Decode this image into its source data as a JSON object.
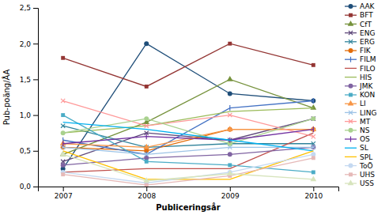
{
  "chart_data": {
    "type": "line",
    "xlabel": "Publiceringsår",
    "ylabel": "Pub-poäng/ÅA",
    "x": [
      2007,
      2008,
      2009,
      2010
    ],
    "xlim": [
      2006.7,
      2010.3
    ],
    "xticks": [
      2007,
      2008,
      2009,
      2010
    ],
    "ylim": [
      0.0,
      2.5
    ],
    "yticks": [
      {
        "value": 0.0,
        "label": "0,0"
      },
      {
        "value": 0.5,
        "label": "0,5"
      },
      {
        "value": 1.0,
        "label": "1,0"
      },
      {
        "value": 1.5,
        "label": "1,5"
      },
      {
        "value": 2.0,
        "label": "2,0"
      },
      {
        "value": 2.5,
        "label": "2,5"
      }
    ],
    "grid": false,
    "legend": "right",
    "series": [
      {
        "name": "AAK",
        "color": "#1F4E79",
        "marker": "circle",
        "line_style": "solid",
        "values": [
          0.25,
          2.0,
          1.3,
          1.2
        ]
      },
      {
        "name": "BFT",
        "color": "#943634",
        "marker": "square",
        "line_style": "solid",
        "values": [
          1.8,
          1.4,
          2.0,
          1.7
        ]
      },
      {
        "name": "CfT",
        "color": "#76923C",
        "marker": "triangle",
        "line_style": "solid",
        "values": [
          0.45,
          0.9,
          1.5,
          1.1
        ]
      },
      {
        "name": "ENG",
        "color": "#5F497A",
        "marker": "x",
        "line_style": "solid",
        "values": [
          0.35,
          0.75,
          0.65,
          0.95
        ]
      },
      {
        "name": "ERG",
        "color": "#31849B",
        "marker": "x",
        "line_style": "solid",
        "values": [
          0.85,
          0.55,
          0.6,
          0.6
        ]
      },
      {
        "name": "FIK",
        "color": "#E36C09",
        "marker": "circle",
        "line_style": "solid",
        "values": [
          0.55,
          0.5,
          0.8,
          0.8
        ]
      },
      {
        "name": "FILM",
        "color": "#4472C4",
        "marker": "vline",
        "line_style": "solid",
        "values": [
          0.65,
          0.45,
          1.1,
          1.2
        ]
      },
      {
        "name": "FILO",
        "color": "#C0504D",
        "marker": "none",
        "line_style": "solid",
        "values": [
          0.2,
          0.25,
          0.25,
          0.75
        ]
      },
      {
        "name": "HIS",
        "color": "#9BBB59",
        "marker": "none",
        "line_style": "solid",
        "values": [
          0.75,
          0.85,
          1.05,
          1.1
        ]
      },
      {
        "name": "JMK",
        "color": "#8064A2",
        "marker": "circle",
        "line_style": "solid",
        "values": [
          0.3,
          0.4,
          0.45,
          0.55
        ]
      },
      {
        "name": "KON",
        "color": "#4BACC6",
        "marker": "square",
        "line_style": "solid",
        "values": [
          1.0,
          0.35,
          0.3,
          0.2
        ]
      },
      {
        "name": "LI",
        "color": "#F79646",
        "marker": "triangle",
        "line_style": "solid",
        "values": [
          0.6,
          0.55,
          0.8,
          0.8
        ]
      },
      {
        "name": "LING",
        "color": "#9DC3E6",
        "marker": "x",
        "line_style": "solid",
        "values": [
          0.55,
          0.45,
          0.55,
          0.55
        ]
      },
      {
        "name": "MT",
        "color": "#FF9999",
        "marker": "x",
        "line_style": "solid",
        "values": [
          1.2,
          0.85,
          1.0,
          0.7
        ]
      },
      {
        "name": "NS",
        "color": "#A9D18E",
        "marker": "circle",
        "line_style": "solid",
        "values": [
          0.75,
          0.95,
          0.6,
          0.95
        ]
      },
      {
        "name": "OS",
        "color": "#7030A0",
        "marker": "vline",
        "line_style": "solid",
        "values": [
          0.6,
          0.7,
          0.65,
          0.8
        ]
      },
      {
        "name": "SL",
        "color": "#00B0F0",
        "marker": "none",
        "line_style": "solid",
        "values": [
          0.9,
          0.8,
          0.65,
          0.5
        ]
      },
      {
        "name": "SPL",
        "color": "#FFC000",
        "marker": "none",
        "line_style": "solid",
        "values": [
          0.5,
          0.1,
          0.1,
          0.5
        ]
      },
      {
        "name": "ToÖ",
        "color": "#C5D9F1",
        "marker": "circle",
        "line_style": "solid",
        "values": [
          0.2,
          0.05,
          0.2,
          0.45
        ]
      },
      {
        "name": "UHS",
        "color": "#E6B9B8",
        "marker": "square",
        "line_style": "solid",
        "values": [
          0.17,
          0.02,
          0.15,
          0.4
        ]
      },
      {
        "name": "USS",
        "color": "#D7E4BD",
        "marker": "triangle",
        "line_style": "solid",
        "values": [
          0.45,
          0.08,
          0.18,
          0.1
        ]
      }
    ]
  }
}
